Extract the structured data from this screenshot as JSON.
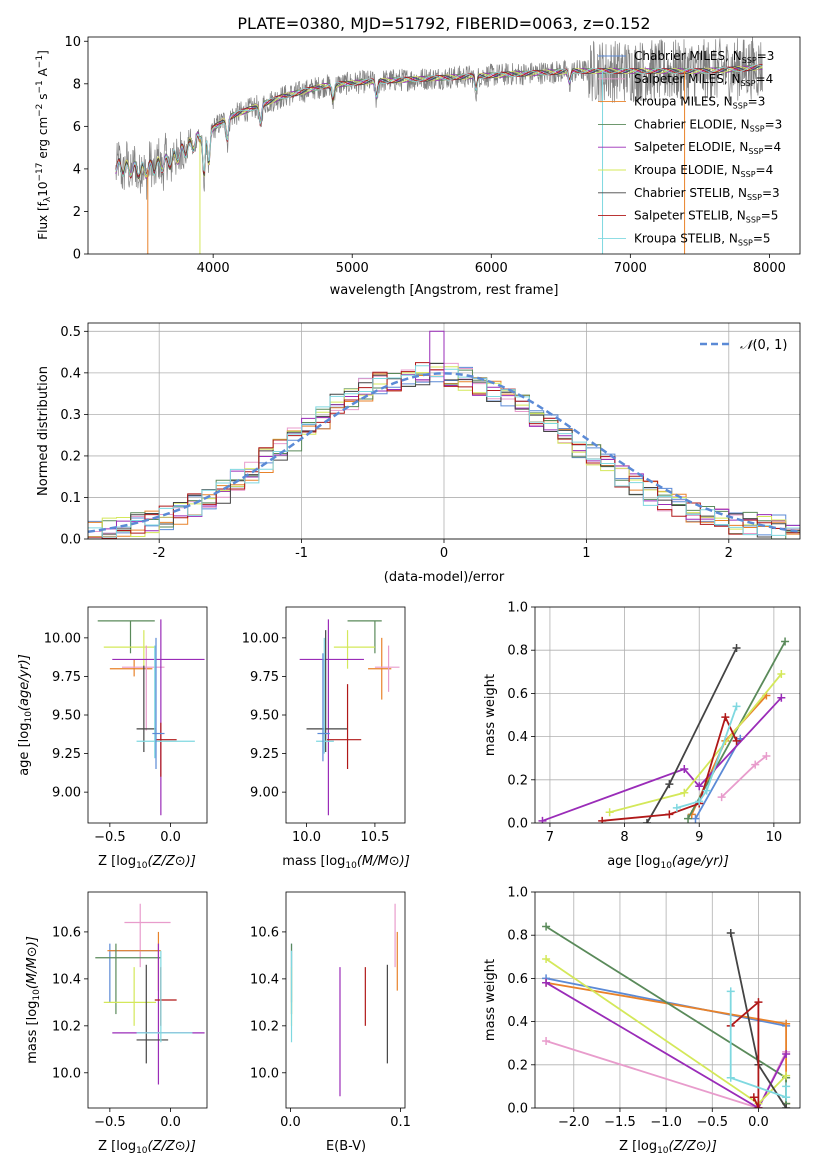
{
  "figure_title": "PLATE=0380, MJD=51792, FIBERID=0063, z=0.152",
  "colors": {
    "data": "#808080",
    "models": [
      "#5b8ad6",
      "#e89ccc",
      "#e8822a",
      "#5a8a5a",
      "#9a2cb8",
      "#d4e85a",
      "#444444",
      "#b01818",
      "#7fd8e0"
    ]
  },
  "chart_data": [
    {
      "name": "spectrum",
      "type": "line",
      "xlabel": "wavelength [Angstrom, rest frame]",
      "ylabel": "Flux [f_λ 10^-17 erg cm^-2 s^-1 A^-1]",
      "xlim": [
        3100,
        8220
      ],
      "ylim": [
        0,
        10.2
      ],
      "xticks": [
        4000,
        5000,
        6000,
        7000,
        8000
      ],
      "yticks": [
        0,
        2,
        4,
        6,
        8,
        10
      ],
      "grid": false,
      "legend_position": "top-right",
      "continuum": {
        "x": [
          3300,
          3500,
          3700,
          3900,
          4100,
          4300,
          4500,
          4800,
          5100,
          5400,
          5700,
          6000,
          6300,
          6600,
          6900,
          7200,
          7500,
          7800,
          7950
        ],
        "y": [
          4.1,
          3.9,
          4.4,
          5.4,
          6.4,
          6.9,
          7.4,
          7.9,
          8.1,
          8.2,
          8.3,
          8.4,
          8.5,
          8.6,
          8.6,
          8.6,
          8.6,
          8.7,
          8.8
        ]
      },
      "series": [
        {
          "name": "Chabrier MILES, N_SSP=3",
          "name_main": "Chabrier MILES, N",
          "name_sub": "SSP",
          "name_suffix": "=3"
        },
        {
          "name": "Salpeter MILES, N_SSP=4",
          "name_main": "Salpeter MILES, N",
          "name_sub": "SSP",
          "name_suffix": "=4"
        },
        {
          "name": "Kroupa MILES, N_SSP=3",
          "name_main": "Kroupa MILES, N",
          "name_sub": "SSP",
          "name_suffix": "=3"
        },
        {
          "name": "Chabrier ELODIE, N_SSP=3",
          "name_main": "Chabrier ELODIE, N",
          "name_sub": "SSP",
          "name_suffix": "=3"
        },
        {
          "name": "Salpeter ELODIE, N_SSP=4",
          "name_main": "Salpeter ELODIE, N",
          "name_sub": "SSP",
          "name_suffix": "=4"
        },
        {
          "name": "Kroupa ELODIE, N_SSP=4",
          "name_main": "Kroupa ELODIE, N",
          "name_sub": "SSP",
          "name_suffix": "=4"
        },
        {
          "name": "Chabrier STELIB, N_SSP=3",
          "name_main": "Chabrier STELIB, N",
          "name_sub": "SSP",
          "name_suffix": "=3"
        },
        {
          "name": "Salpeter STELIB, N_SSP=5",
          "name_main": "Salpeter STELIB, N",
          "name_sub": "SSP",
          "name_suffix": "=5"
        },
        {
          "name": "Kroupa STELIB, N_SSP=5",
          "name_main": "Kroupa STELIB, N",
          "name_sub": "SSP",
          "name_suffix": "=5"
        }
      ]
    },
    {
      "name": "residuals",
      "type": "step-histogram",
      "xlabel": "(data-model)/error",
      "ylabel": "Normed distribution",
      "xlim": [
        -2.5,
        2.5
      ],
      "ylim": [
        0,
        0.52
      ],
      "xticks": [
        -2,
        -1,
        0,
        1,
        2
      ],
      "yticks": [
        0.0,
        0.1,
        0.2,
        0.3,
        0.4,
        0.5
      ],
      "grid": true,
      "legend": {
        "label": "N(0, 1)",
        "position": "top-right"
      },
      "bin_centers": [
        -2.45,
        -2.35,
        -2.25,
        -2.15,
        -2.05,
        -1.95,
        -1.85,
        -1.75,
        -1.65,
        -1.55,
        -1.45,
        -1.35,
        -1.25,
        -1.15,
        -1.05,
        -0.95,
        -0.85,
        -0.75,
        -0.65,
        -0.55,
        -0.45,
        -0.35,
        -0.25,
        -0.15,
        -0.05,
        0.05,
        0.15,
        0.25,
        0.35,
        0.45,
        0.55,
        0.65,
        0.75,
        0.85,
        0.95,
        1.05,
        1.15,
        1.25,
        1.35,
        1.45,
        1.55,
        1.65,
        1.75,
        1.85,
        1.95,
        2.05,
        2.15,
        2.25,
        2.35,
        2.45
      ],
      "values_typical": [
        0.02,
        0.025,
        0.03,
        0.035,
        0.04,
        0.05,
        0.065,
        0.08,
        0.1,
        0.115,
        0.14,
        0.165,
        0.19,
        0.215,
        0.24,
        0.27,
        0.295,
        0.32,
        0.34,
        0.36,
        0.375,
        0.385,
        0.395,
        0.4,
        0.4,
        0.395,
        0.385,
        0.375,
        0.36,
        0.34,
        0.32,
        0.3,
        0.275,
        0.25,
        0.225,
        0.2,
        0.175,
        0.15,
        0.13,
        0.11,
        0.095,
        0.08,
        0.065,
        0.055,
        0.045,
        0.04,
        0.035,
        0.03,
        0.028,
        0.025
      ],
      "gaussian": {
        "mean": 0,
        "sigma": 1
      }
    },
    {
      "name": "age-vs-Z",
      "type": "errorbar",
      "xlabel_main": "Z [log",
      "xlabel_sub": "10",
      "xlabel_rest": "(Z/Z⊙)]",
      "ylabel_main": "age  [log",
      "ylabel_sub": "10",
      "ylabel_rest": "(age/yr)]",
      "xlim": [
        -0.68,
        0.3
      ],
      "ylim": [
        8.8,
        10.2
      ],
      "xticks": [
        -0.5,
        0.0
      ],
      "xticklabels": [
        "−0.5",
        "0.0"
      ],
      "yticks": [
        9.0,
        9.25,
        9.5,
        9.75,
        10.0
      ],
      "yticklabels": [
        "9.00",
        "9.25",
        "9.50",
        "9.75",
        "10.00"
      ],
      "points": [
        {
          "x": -0.33,
          "y": 10.11,
          "xlo": -0.6,
          "xhi": -0.13,
          "ylo": 9.9,
          "yhi": 10.11,
          "series": 3
        },
        {
          "x": -0.22,
          "y": 9.94,
          "xlo": -0.55,
          "xhi": -0.12,
          "ylo": 9.8,
          "yhi": 10.05,
          "series": 5
        },
        {
          "x": -0.3,
          "y": 9.8,
          "xlo": -0.5,
          "xhi": -0.15,
          "ylo": 9.75,
          "yhi": 9.86,
          "series": 2
        },
        {
          "x": -0.2,
          "y": 9.81,
          "xlo": -0.4,
          "xhi": -0.05,
          "ylo": 9.4,
          "yhi": 9.95,
          "series": 1
        },
        {
          "x": -0.08,
          "y": 9.86,
          "xlo": -0.48,
          "xhi": 0.28,
          "ylo": 8.85,
          "yhi": 10.12,
          "series": 4
        },
        {
          "x": -0.22,
          "y": 9.41,
          "xlo": -0.28,
          "xhi": -0.12,
          "ylo": 9.26,
          "yhi": 9.82,
          "series": 6
        },
        {
          "x": -0.08,
          "y": 9.34,
          "xlo": -0.12,
          "xhi": 0.05,
          "ylo": 9.1,
          "yhi": 9.45,
          "series": 7
        },
        {
          "x": -0.13,
          "y": 9.33,
          "xlo": -0.28,
          "xhi": 0.2,
          "ylo": 9.22,
          "yhi": 9.95,
          "series": 8
        },
        {
          "x": -0.12,
          "y": 9.38,
          "xlo": -0.15,
          "xhi": -0.05,
          "ylo": 9.15,
          "yhi": 10.0,
          "series": 0
        }
      ]
    },
    {
      "name": "age-vs-mass",
      "type": "errorbar",
      "xlabel_main": "mass [log",
      "xlabel_sub": "10",
      "xlabel_rest": "(M/M⊙)]",
      "xlim": [
        9.85,
        10.72
      ],
      "ylim": [
        8.8,
        10.2
      ],
      "xticks": [
        10.0,
        10.5
      ],
      "xticklabels": [
        "10.0",
        "10.5"
      ],
      "yticks": [
        9.0,
        9.25,
        9.5,
        9.75,
        10.0
      ],
      "yticklabels": [
        "9.00",
        "9.25",
        "9.50",
        "9.75",
        "10.00"
      ],
      "points": [
        {
          "x": 10.5,
          "y": 10.11,
          "xlo": 10.3,
          "xhi": 10.55,
          "ylo": 9.9,
          "yhi": 10.11,
          "series": 3
        },
        {
          "x": 10.3,
          "y": 9.94,
          "xlo": 10.2,
          "xhi": 10.5,
          "ylo": 9.8,
          "yhi": 10.05,
          "series": 5
        },
        {
          "x": 10.55,
          "y": 9.8,
          "xlo": 10.45,
          "xhi": 10.62,
          "ylo": 9.6,
          "yhi": 10.0,
          "series": 2
        },
        {
          "x": 10.6,
          "y": 9.81,
          "xlo": 10.5,
          "xhi": 10.68,
          "ylo": 9.65,
          "yhi": 9.95,
          "series": 1
        },
        {
          "x": 10.16,
          "y": 9.86,
          "xlo": 9.95,
          "xhi": 10.42,
          "ylo": 8.85,
          "yhi": 10.12,
          "series": 4
        },
        {
          "x": 10.14,
          "y": 9.41,
          "xlo": 10.0,
          "xhi": 10.3,
          "ylo": 9.26,
          "yhi": 10.05,
          "series": 6
        },
        {
          "x": 10.3,
          "y": 9.34,
          "xlo": 10.15,
          "xhi": 10.4,
          "ylo": 9.15,
          "yhi": 9.7,
          "series": 7
        },
        {
          "x": 10.13,
          "y": 9.33,
          "xlo": 10.07,
          "xhi": 10.2,
          "ylo": 9.25,
          "yhi": 10.0,
          "series": 8
        },
        {
          "x": 10.12,
          "y": 9.38,
          "xlo": 10.08,
          "xhi": 10.17,
          "ylo": 9.2,
          "yhi": 9.9,
          "series": 0
        }
      ]
    },
    {
      "name": "mass-weight-vs-age",
      "type": "line",
      "xlabel_main": "age  [log",
      "xlabel_sub": "10",
      "xlabel_rest": "(age/yr)]",
      "ylabel": "mass weight",
      "xlim": [
        6.8,
        10.35
      ],
      "ylim": [
        0,
        1.0
      ],
      "xticks": [
        7,
        8,
        9,
        10
      ],
      "yticks": [
        0.0,
        0.2,
        0.4,
        0.6,
        0.8,
        1.0
      ],
      "grid": true,
      "series": [
        {
          "x": [
            8.95,
            9.55
          ],
          "y": [
            0.02,
            0.39
          ],
          "series": 0
        },
        {
          "x": [
            9.3,
            9.75,
            9.9
          ],
          "y": [
            0.12,
            0.27,
            0.31
          ],
          "series": 1
        },
        {
          "x": [
            8.9,
            9.35,
            9.9
          ],
          "y": [
            0.04,
            0.38,
            0.59
          ],
          "series": 2
        },
        {
          "x": [
            8.85,
            10.15
          ],
          "y": [
            0.02,
            0.84
          ],
          "series": 3
        },
        {
          "x": [
            6.9,
            8.8,
            9.0,
            10.1
          ],
          "y": [
            0.01,
            0.25,
            0.17,
            0.58
          ],
          "series": 4
        },
        {
          "x": [
            7.8,
            8.8,
            10.1
          ],
          "y": [
            0.05,
            0.14,
            0.69
          ],
          "series": 5
        },
        {
          "x": [
            8.3,
            8.6,
            9.5
          ],
          "y": [
            0.0,
            0.18,
            0.81
          ],
          "series": 6
        },
        {
          "x": [
            7.7,
            8.6,
            9.0,
            9.35,
            9.5
          ],
          "y": [
            0.01,
            0.04,
            0.09,
            0.49,
            0.38
          ],
          "series": 7
        },
        {
          "x": [
            8.7,
            9.0,
            9.1,
            9.5
          ],
          "y": [
            0.07,
            0.1,
            0.15,
            0.54
          ],
          "series": 8
        }
      ]
    },
    {
      "name": "mass-vs-Z",
      "type": "errorbar",
      "xlabel_main": "Z [log",
      "xlabel_sub": "10",
      "xlabel_rest": "(Z/Z⊙)]",
      "ylabel_main": "mass [log",
      "ylabel_sub": "10",
      "ylabel_rest": "(M/M⊙)]",
      "xlim": [
        -0.68,
        0.3
      ],
      "ylim": [
        9.85,
        10.77
      ],
      "xticks": [
        -0.5,
        0.0
      ],
      "xticklabels": [
        "−0.5",
        "0.0"
      ],
      "yticks": [
        10.0,
        10.2,
        10.4,
        10.6
      ],
      "yticklabels": [
        "10.0",
        "10.2",
        "10.4",
        "10.6"
      ],
      "points": [
        {
          "x": -0.5,
          "y": 10.52,
          "xlo": -0.5,
          "xhi": -0.1,
          "ylo": 10.3,
          "yhi": 10.55,
          "series": 0
        },
        {
          "x": -0.25,
          "y": 10.64,
          "xlo": -0.38,
          "xhi": 0.0,
          "ylo": 10.45,
          "yhi": 10.72,
          "series": 1
        },
        {
          "x": -0.1,
          "y": 10.52,
          "xlo": -0.52,
          "xhi": -0.08,
          "ylo": 10.35,
          "yhi": 10.6,
          "series": 2
        },
        {
          "x": -0.45,
          "y": 10.49,
          "xlo": -0.62,
          "xhi": -0.08,
          "ylo": 10.25,
          "yhi": 10.55,
          "series": 3
        },
        {
          "x": -0.1,
          "y": 10.17,
          "xlo": -0.48,
          "xhi": 0.28,
          "ylo": 9.95,
          "yhi": 10.55,
          "series": 4
        },
        {
          "x": -0.3,
          "y": 10.3,
          "xlo": -0.55,
          "xhi": -0.12,
          "ylo": 10.2,
          "yhi": 10.45,
          "series": 5
        },
        {
          "x": -0.2,
          "y": 10.14,
          "xlo": -0.28,
          "xhi": -0.02,
          "ylo": 10.04,
          "yhi": 10.46,
          "series": 6
        },
        {
          "x": -0.08,
          "y": 10.31,
          "xlo": -0.13,
          "xhi": 0.05,
          "ylo": 10.2,
          "yhi": 10.45,
          "series": 7
        },
        {
          "x": -0.08,
          "y": 10.17,
          "xlo": -0.28,
          "xhi": 0.18,
          "ylo": 10.13,
          "yhi": 10.52,
          "series": 8
        }
      ]
    },
    {
      "name": "mass-vs-EBV",
      "type": "errorbar",
      "xlabel": "E(B-V)",
      "xlim": [
        -0.004,
        0.104
      ],
      "ylim": [
        9.85,
        10.77
      ],
      "xticks": [
        0.0,
        0.1
      ],
      "xticklabels": [
        "0.0",
        "0.1"
      ],
      "yticks": [
        10.0,
        10.2,
        10.4,
        10.6
      ],
      "yticklabels": [
        "10.0",
        "10.2",
        "10.4",
        "10.6"
      ],
      "points": [
        {
          "x": 0.001,
          "y": 10.52,
          "ylo": 10.3,
          "yhi": 10.55,
          "series": 0
        },
        {
          "x": 0.095,
          "y": 10.64,
          "ylo": 10.45,
          "yhi": 10.72,
          "series": 1
        },
        {
          "x": 0.097,
          "y": 10.52,
          "ylo": 10.35,
          "yhi": 10.6,
          "series": 2
        },
        {
          "x": 0.001,
          "y": 10.49,
          "ylo": 10.25,
          "yhi": 10.55,
          "series": 3
        },
        {
          "x": 0.045,
          "y": 10.17,
          "ylo": 9.9,
          "yhi": 10.45,
          "series": 4
        },
        {
          "x": 0.001,
          "y": 10.3,
          "ylo": 10.2,
          "yhi": 10.45,
          "series": 5
        },
        {
          "x": 0.088,
          "y": 10.14,
          "ylo": 10.04,
          "yhi": 10.46,
          "series": 6
        },
        {
          "x": 0.068,
          "y": 10.31,
          "ylo": 10.2,
          "yhi": 10.45,
          "series": 7
        },
        {
          "x": 0.001,
          "y": 10.17,
          "ylo": 10.13,
          "yhi": 10.52,
          "series": 8
        }
      ]
    },
    {
      "name": "mass-weight-vs-Z",
      "type": "line",
      "xlabel_main": "Z [log",
      "xlabel_sub": "10",
      "xlabel_rest": "(Z/Z⊙)]",
      "ylabel": "mass weight",
      "xlim": [
        -2.42,
        0.45
      ],
      "ylim": [
        0,
        1.0
      ],
      "xticks": [
        -2.0,
        -1.5,
        -1.0,
        -0.5,
        0.0
      ],
      "xticklabels": [
        "−2.0",
        "−1.5",
        "−1.0",
        "−0.5",
        "0.0"
      ],
      "yticks": [
        0.0,
        0.2,
        0.4,
        0.6,
        0.8,
        1.0
      ],
      "grid": true,
      "series": [
        {
          "x": [
            -2.3,
            0.3
          ],
          "y": [
            0.6,
            0.38
          ],
          "series": 0
        },
        {
          "x": [
            -2.3,
            0.0,
            0.3
          ],
          "y": [
            0.31,
            0.0,
            0.26
          ],
          "series": 1
        },
        {
          "x": [
            -2.3,
            0.3,
            0.3
          ],
          "y": [
            0.58,
            0.39,
            0.02
          ],
          "series": 2
        },
        {
          "x": [
            -2.3,
            0.3,
            0.3
          ],
          "y": [
            0.84,
            0.14,
            0.02
          ],
          "series": 3
        },
        {
          "x": [
            -2.3,
            0.0,
            0.3
          ],
          "y": [
            0.58,
            0.0,
            0.25
          ],
          "series": 4
        },
        {
          "x": [
            -2.3,
            0.0,
            0.3
          ],
          "y": [
            0.69,
            0.02,
            0.15
          ],
          "series": 5
        },
        {
          "x": [
            -0.3,
            0.0,
            0.3
          ],
          "y": [
            0.81,
            0.2,
            0.0
          ],
          "series": 6
        },
        {
          "x": [
            -0.3,
            0.0,
            0.0,
            -0.05
          ],
          "y": [
            0.38,
            0.49,
            0.0,
            0.05
          ],
          "series": 7
        },
        {
          "x": [
            -0.3,
            -0.3,
            0.3,
            0.3
          ],
          "y": [
            0.54,
            0.14,
            0.05,
            0.1
          ],
          "series": 8
        }
      ]
    }
  ]
}
